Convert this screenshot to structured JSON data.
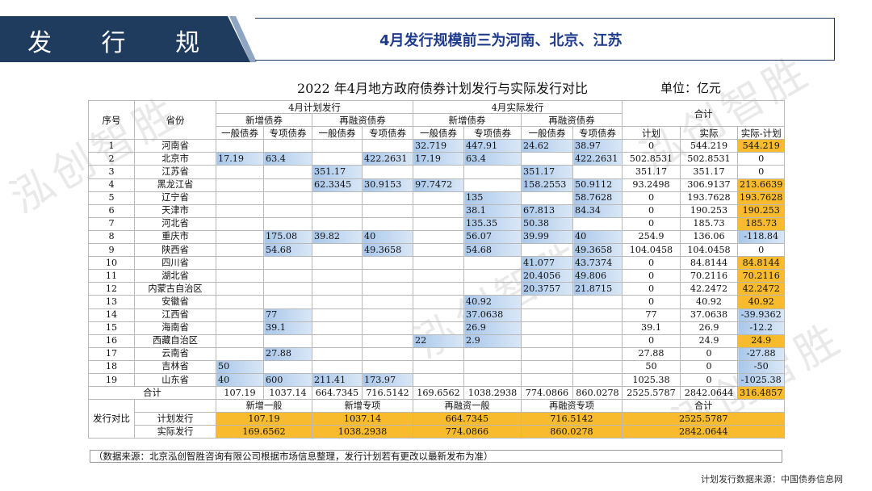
{
  "header": {
    "section_title": "发 行 规 模",
    "subtitle": "4月发行规模前三为河南、北京、江苏"
  },
  "chart_title": "2022 年4月地方政府债券计划发行与实际发行对比",
  "unit": "单位：亿元",
  "watermark": "泓创智胜",
  "table": {
    "h_seq": "序号",
    "h_province": "省份",
    "h_plan": "4月计划发行",
    "h_actual": "4月实际发行",
    "h_total": "合计",
    "h_new": "新增债券",
    "h_refi": "再融资债券",
    "h_general": "一般债券",
    "h_special": "专项债券",
    "h_t_plan": "计划",
    "h_t_actual": "实际",
    "h_t_diff": "实际-计划",
    "rows": [
      {
        "no": "1",
        "prov": "河南省",
        "pg": "",
        "ps": "",
        "prg": "",
        "prs": "",
        "ag": "32.719",
        "as": "447.91",
        "arg": "24.62",
        "ars": "38.97",
        "tp": "0",
        "ta": "544.219",
        "td": "544.219"
      },
      {
        "no": "2",
        "prov": "北京市",
        "pg": "17.19",
        "ps": "63.4",
        "prg": "",
        "prs": "422.2631",
        "ag": "17.19",
        "as": "63.4",
        "arg": "",
        "ars": "422.2631",
        "tp": "502.8531",
        "ta": "502.8531",
        "td": "0"
      },
      {
        "no": "3",
        "prov": "江苏省",
        "pg": "",
        "ps": "",
        "prg": "351.17",
        "prs": "",
        "ag": "",
        "as": "",
        "arg": "351.17",
        "ars": "",
        "tp": "351.17",
        "ta": "351.17",
        "td": "0"
      },
      {
        "no": "4",
        "prov": "黑龙江省",
        "pg": "",
        "ps": "",
        "prg": "62.3345",
        "prs": "30.9153",
        "ag": "97.7472",
        "as": "",
        "arg": "158.2553",
        "ars": "50.9112",
        "tp": "93.2498",
        "ta": "306.9137",
        "td": "213.6639"
      },
      {
        "no": "5",
        "prov": "辽宁省",
        "pg": "",
        "ps": "",
        "prg": "",
        "prs": "",
        "ag": "",
        "as": "135",
        "arg": "",
        "ars": "58.7628",
        "tp": "0",
        "ta": "193.7628",
        "td": "193.7628"
      },
      {
        "no": "6",
        "prov": "天津市",
        "pg": "",
        "ps": "",
        "prg": "",
        "prs": "",
        "ag": "",
        "as": "38.1",
        "arg": "67.813",
        "ars": "84.34",
        "tp": "0",
        "ta": "190.253",
        "td": "190.253"
      },
      {
        "no": "7",
        "prov": "河北省",
        "pg": "",
        "ps": "",
        "prg": "",
        "prs": "",
        "ag": "",
        "as": "135.35",
        "arg": "50.38",
        "ars": "",
        "tp": "0",
        "ta": "185.73",
        "td": "185.73"
      },
      {
        "no": "8",
        "prov": "重庆市",
        "pg": "",
        "ps": "175.08",
        "prg": "39.82",
        "prs": "40",
        "ag": "",
        "as": "56.07",
        "arg": "39.99",
        "ars": "40",
        "tp": "254.9",
        "ta": "136.06",
        "td": "-118.84"
      },
      {
        "no": "9",
        "prov": "陕西省",
        "pg": "",
        "ps": "54.68",
        "prg": "",
        "prs": "49.3658",
        "ag": "",
        "as": "54.68",
        "arg": "",
        "ars": "49.3658",
        "tp": "104.0458",
        "ta": "104.0458",
        "td": "0"
      },
      {
        "no": "10",
        "prov": "四川省",
        "pg": "",
        "ps": "",
        "prg": "",
        "prs": "",
        "ag": "",
        "as": "",
        "arg": "41.077",
        "ars": "43.7374",
        "tp": "0",
        "ta": "84.8144",
        "td": "84.8144"
      },
      {
        "no": "11",
        "prov": "湖北省",
        "pg": "",
        "ps": "",
        "prg": "",
        "prs": "",
        "ag": "",
        "as": "",
        "arg": "20.4056",
        "ars": "49.806",
        "tp": "0",
        "ta": "70.2116",
        "td": "70.2116"
      },
      {
        "no": "12",
        "prov": "内蒙古自治区",
        "pg": "",
        "ps": "",
        "prg": "",
        "prs": "",
        "ag": "",
        "as": "",
        "arg": "20.3757",
        "ars": "21.8715",
        "tp": "0",
        "ta": "42.2472",
        "td": "42.2472"
      },
      {
        "no": "13",
        "prov": "安徽省",
        "pg": "",
        "ps": "",
        "prg": "",
        "prs": "",
        "ag": "",
        "as": "40.92",
        "arg": "",
        "ars": "",
        "tp": "0",
        "ta": "40.92",
        "td": "40.92"
      },
      {
        "no": "14",
        "prov": "江西省",
        "pg": "",
        "ps": "77",
        "prg": "",
        "prs": "",
        "ag": "",
        "as": "37.0638",
        "arg": "",
        "ars": "",
        "tp": "77",
        "ta": "37.0638",
        "td": "-39.9362"
      },
      {
        "no": "15",
        "prov": "海南省",
        "pg": "",
        "ps": "39.1",
        "prg": "",
        "prs": "",
        "ag": "",
        "as": "26.9",
        "arg": "",
        "ars": "",
        "tp": "39.1",
        "ta": "26.9",
        "td": "-12.2"
      },
      {
        "no": "16",
        "prov": "西藏自治区",
        "pg": "",
        "ps": "",
        "prg": "",
        "prs": "",
        "ag": "22",
        "as": "2.9",
        "arg": "",
        "ars": "",
        "tp": "0",
        "ta": "24.9",
        "td": "24.9"
      },
      {
        "no": "17",
        "prov": "云南省",
        "pg": "",
        "ps": "27.88",
        "prg": "",
        "prs": "",
        "ag": "",
        "as": "",
        "arg": "",
        "ars": "",
        "tp": "27.88",
        "ta": "0",
        "td": "-27.88"
      },
      {
        "no": "18",
        "prov": "吉林省",
        "pg": "50",
        "ps": "",
        "prg": "",
        "prs": "",
        "ag": "",
        "as": "",
        "arg": "",
        "ars": "",
        "tp": "50",
        "ta": "0",
        "td": "-50"
      },
      {
        "no": "19",
        "prov": "山东省",
        "pg": "40",
        "ps": "600",
        "prg": "211.41",
        "prs": "173.97",
        "ag": "",
        "as": "",
        "arg": "",
        "ars": "",
        "tp": "1025.38",
        "ta": "0",
        "td": "-1025.38"
      }
    ],
    "total": {
      "label": "合计",
      "pg": "107.19",
      "ps": "1037.14",
      "prg": "664.7345",
      "prs": "716.5142",
      "ag": "169.6562",
      "as": "1038.2938",
      "arg": "774.0866",
      "ars": "860.0278",
      "tp": "2525.5787",
      "ta": "2842.0644",
      "td": "316.4857"
    },
    "compare": {
      "label": "发行对比",
      "h_new_general": "新增一般",
      "h_new_special": "新增专项",
      "h_refi_general": "再融资一般",
      "h_refi_special": "再融资专项",
      "h_total": "合计",
      "plan_label": "计划发行",
      "actual_label": "实际发行",
      "plan": [
        "107.19",
        "1037.14",
        "664.7345",
        "716.5142",
        "2525.5787"
      ],
      "actual": [
        "169.6562",
        "1038.2938",
        "774.0866",
        "860.0278",
        "2842.0644"
      ]
    }
  },
  "source_note": "（数据来源：北京泓创智胜咨询有限公司根据市场信息整理，发行计划若有更改以最新发布为准）",
  "footer": "计划发行数据来源：中国债券信息网",
  "colors": {
    "header_navy": "#1f3b5e",
    "highlight_orange": "#f8bb2e",
    "bar_blue": "#a9c7ea"
  }
}
